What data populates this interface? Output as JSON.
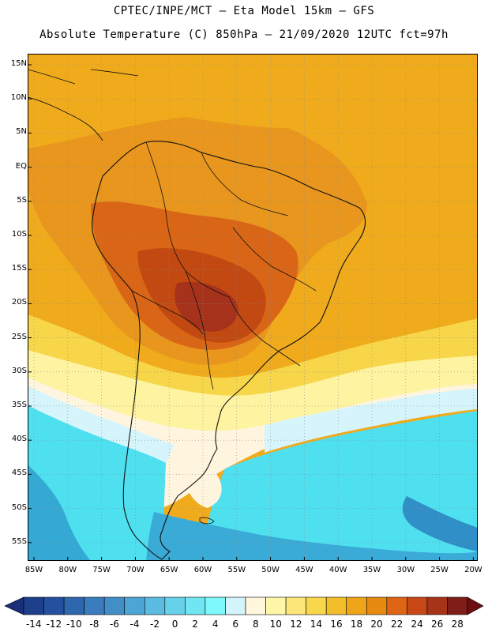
{
  "title_line1": "CPTEC/INPE/MCT –  Eta Model 15km – GFS",
  "title_line2": "Absolute Temperature (C) 850hPa – 21/09/2020 12UTC fct=97h",
  "map": {
    "lat_labels": [
      "15N",
      "10N",
      "5N",
      "EQ",
      "5S",
      "10S",
      "15S",
      "20S",
      "25S",
      "30S",
      "35S",
      "40S",
      "45S",
      "50S",
      "55S"
    ],
    "lon_labels": [
      "85W",
      "80W",
      "75W",
      "70W",
      "65W",
      "60W",
      "55W",
      "50W",
      "45W",
      "40W",
      "35W",
      "30W",
      "25W",
      "20W"
    ],
    "field_bands": [
      {
        "level": "28+",
        "color": "#8c1f1a"
      },
      {
        "level": "26",
        "color": "#a7321b"
      },
      {
        "level": "22-24",
        "color": "#c24a12"
      },
      {
        "level": "20",
        "color": "#d86414"
      },
      {
        "level": "18",
        "color": "#e99a1e"
      },
      {
        "level": "16",
        "color": "#f1ae1b"
      },
      {
        "level": "12-14",
        "color": "#f8d84a"
      },
      {
        "level": "8-10",
        "color": "#fdf3a0"
      },
      {
        "level": "6",
        "color": "#fff7e0"
      },
      {
        "level": "4",
        "color": "#d9f4ff"
      },
      {
        "level": "2",
        "color": "#5ff0ff"
      },
      {
        "level": "0",
        "color": "#3ad7eb"
      },
      {
        "level": "-4",
        "color": "#33a9d4"
      }
    ],
    "graticule": "dotted"
  },
  "colorbar": {
    "labels": [
      "-14",
      "-12",
      "-10",
      "-8",
      "-6",
      "-4",
      "-2",
      "0",
      "2",
      "4",
      "6",
      "8",
      "10",
      "12",
      "14",
      "16",
      "18",
      "20",
      "22",
      "24",
      "26",
      "28"
    ],
    "colors": [
      "#1d3f8c",
      "#24519e",
      "#2d67ae",
      "#3a7cbd",
      "#428fc8",
      "#4ca5d4",
      "#5bbbe0",
      "#67d0ea",
      "#6fe6f2",
      "#7ff8fb",
      "#d3f4fb",
      "#fff6dc",
      "#fff7a8",
      "#fde77a",
      "#f8d74c",
      "#f1bd2a",
      "#eea51a",
      "#e68a10",
      "#dd6514",
      "#c84716",
      "#a53418",
      "#7f1e18"
    ],
    "end_low_color": "#1b2e7a",
    "end_high_color": "#6b0f13"
  }
}
